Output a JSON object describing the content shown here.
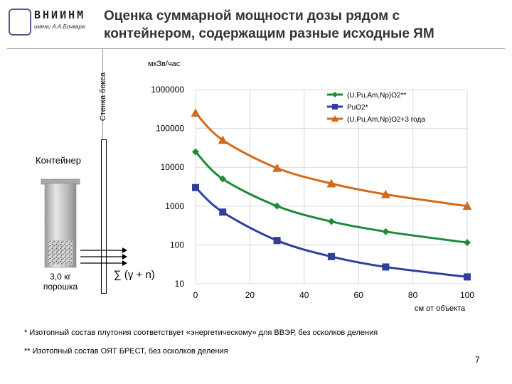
{
  "header": {
    "logo_text": "ВНИИНМ",
    "logo_sub": "имени А.А.Бочвара",
    "title_line1": "Оценка суммарной мощности дозы рядом с",
    "title_line2": "контейнером, содержащим разные исходные ЯМ"
  },
  "scene": {
    "wall_label": "Стенка бокса",
    "container_label": "Контейнер",
    "amount_line1": "3,0 кг",
    "amount_line2": "порошка",
    "formula": "∑ (γ + n)"
  },
  "footnotes": {
    "note1": "* Изотопный состав плутония соответствует «энергетическому» для ВВЭР, без осколков деления",
    "note2": "** Изотопный состав ОЯТ БРЕСТ, без осколков деления"
  },
  "page_number": "7",
  "colors": {
    "series1": "#1e8a3a",
    "series2": "#2f3f9e",
    "series3": "#d46a1a",
    "grid": "#d8d8d8"
  },
  "chart_data": {
    "type": "line",
    "title": "",
    "ylabel": "мкЗв/час",
    "xlabel": "см от объекта",
    "y_scale": "log",
    "ylim": [
      10,
      1000000
    ],
    "xlim": [
      0,
      100
    ],
    "grid": true,
    "legend_position": "top-right",
    "y_ticks": [
      10,
      100,
      1000,
      10000,
      100000,
      1000000
    ],
    "y_tick_labels": [
      "10",
      "100",
      "1000",
      "10000",
      "100000",
      "1000000"
    ],
    "x_ticks": [
      0,
      20,
      40,
      60,
      80,
      100
    ],
    "x_tick_labels": [
      "0",
      "20",
      "40",
      "60",
      "80",
      "100"
    ],
    "series": [
      {
        "name": "(U,Pu,Am,Np)O2**",
        "marker": "diamond",
        "color": "#1e8a3a",
        "x": [
          0,
          10,
          30,
          50,
          70,
          100
        ],
        "y": [
          25000,
          5000,
          1000,
          400,
          220,
          115
        ]
      },
      {
        "name": "PuO2*",
        "marker": "square",
        "color": "#2f3f9e",
        "x": [
          0,
          10,
          30,
          50,
          70,
          100
        ],
        "y": [
          3000,
          700,
          130,
          50,
          27,
          15
        ]
      },
      {
        "name": "(U,Pu,Am,Np)O2+3 года",
        "marker": "triangle",
        "color": "#d46a1a",
        "x": [
          0,
          10,
          30,
          50,
          70,
          100
        ],
        "y": [
          250000,
          50000,
          9500,
          3800,
          2000,
          1000
        ]
      }
    ]
  }
}
